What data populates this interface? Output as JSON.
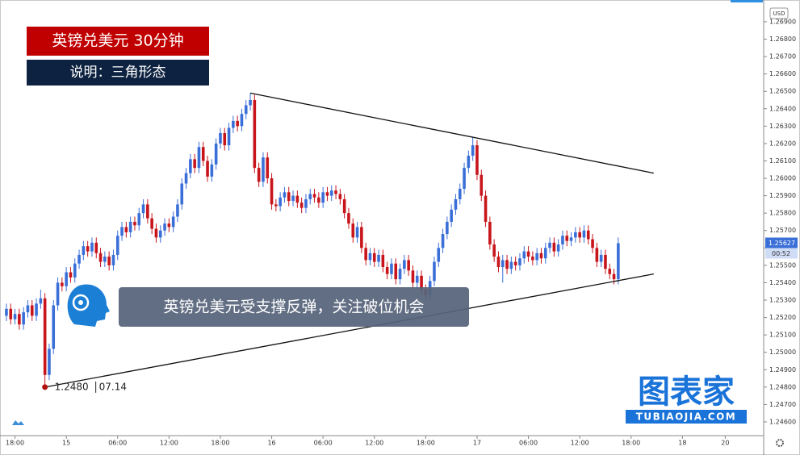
{
  "chart_data": {
    "type": "candlestick",
    "title": "英镑兑美元 30分钟",
    "subtitle": "说明：三角形态",
    "annotation": "英镑兑美元受支撑反弹，关注破位机会",
    "currency": "USD",
    "low_label": "1.2480",
    "low_time": "07.14",
    "last_price_label": "1.25627",
    "countdown": "00:52",
    "up_color": "#3a6fd8",
    "down_color": "#c8151b",
    "xlim": [
      -1.5,
      176.8
    ],
    "ylim": [
      1.24521,
      1.27025
    ],
    "xticks": [
      {
        "value": 2,
        "label": "18:00"
      },
      {
        "value": 14,
        "label": "15"
      },
      {
        "value": 26,
        "label": "06:00"
      },
      {
        "value": 38,
        "label": "12:00"
      },
      {
        "value": 50,
        "label": "18:00"
      },
      {
        "value": 62,
        "label": "16"
      },
      {
        "value": 74,
        "label": "06:00"
      },
      {
        "value": 86,
        "label": "12:00"
      },
      {
        "value": 98,
        "label": "18:00"
      },
      {
        "value": 110,
        "label": "17"
      },
      {
        "value": 122,
        "label": "06:00"
      },
      {
        "value": 134,
        "label": "12:00"
      },
      {
        "value": 146,
        "label": "18:00"
      },
      {
        "value": 158,
        "label": "18"
      },
      {
        "value": 168,
        "label": "20"
      }
    ],
    "yticks": [
      {
        "value": 1.246,
        "label": "1.24600"
      },
      {
        "value": 1.247,
        "label": "1.24700"
      },
      {
        "value": 1.248,
        "label": "1.24800"
      },
      {
        "value": 1.249,
        "label": "1.24900"
      },
      {
        "value": 1.25,
        "label": "1.25000"
      },
      {
        "value": 1.251,
        "label": "1.25100"
      },
      {
        "value": 1.252,
        "label": "1.25200"
      },
      {
        "value": 1.253,
        "label": "1.25300"
      },
      {
        "value": 1.254,
        "label": "1.25400"
      },
      {
        "value": 1.255,
        "label": "1.25500"
      },
      {
        "value": 1.256,
        "label": "1.25600"
      },
      {
        "value": 1.257,
        "label": "1.25700"
      },
      {
        "value": 1.258,
        "label": "1.25800"
      },
      {
        "value": 1.259,
        "label": "1.25900"
      },
      {
        "value": 1.26,
        "label": "1.26000"
      },
      {
        "value": 1.261,
        "label": "1.26100"
      },
      {
        "value": 1.262,
        "label": "1.26200"
      },
      {
        "value": 1.263,
        "label": "1.26300"
      },
      {
        "value": 1.264,
        "label": "1.26400"
      },
      {
        "value": 1.265,
        "label": "1.26500"
      },
      {
        "value": 1.266,
        "label": "1.26600"
      },
      {
        "value": 1.267,
        "label": "1.26700"
      },
      {
        "value": 1.268,
        "label": "1.26800"
      },
      {
        "value": 1.269,
        "label": "1.26900"
      }
    ],
    "trendlines": [
      {
        "x": [
          57,
          151.3
        ],
        "y": [
          1.2649,
          1.2603
        ]
      },
      {
        "x": [
          9,
          151.3
        ],
        "y": [
          1.248,
          1.2545
        ]
      }
    ],
    "open": [
      1.2521,
      1.2525,
      1.2519,
      1.2522,
      1.2516,
      1.2523,
      1.2527,
      1.2521,
      1.2528,
      1.2531,
      1.2487,
      1.2502,
      1.2527,
      1.254,
      1.2538,
      1.2546,
      1.2543,
      1.2551,
      1.2556,
      1.2561,
      1.2558,
      1.2563,
      1.2557,
      1.2552,
      1.2555,
      1.255,
      1.2556,
      1.2567,
      1.2572,
      1.2569,
      1.2575,
      1.2573,
      1.258,
      1.2585,
      1.2577,
      1.2571,
      1.2566,
      1.257,
      1.2574,
      1.2572,
      1.2578,
      1.2585,
      1.2597,
      1.2603,
      1.2611,
      1.2606,
      1.2618,
      1.261,
      1.2601,
      1.2608,
      1.262,
      1.2626,
      1.2619,
      1.2629,
      1.2633,
      1.263,
      1.2637,
      1.2642,
      1.2645,
      1.2606,
      1.2598,
      1.2612,
      1.26,
      1.2585,
      1.2584,
      1.2589,
      1.2592,
      1.2587,
      1.259,
      1.2586,
      1.2583,
      1.2588,
      1.2591,
      1.2589,
      1.2586,
      1.2592,
      1.259,
      1.2593,
      1.2591,
      1.2588,
      1.258,
      1.2574,
      1.2566,
      1.2572,
      1.256,
      1.2553,
      1.2557,
      1.2552,
      1.2556,
      1.2549,
      1.2545,
      1.2551,
      1.2542,
      1.2548,
      1.2553,
      1.2547,
      1.254,
      1.2544,
      1.2536,
      1.2533,
      1.2541,
      1.2552,
      1.256,
      1.2568,
      1.2575,
      1.2582,
      1.2588,
      1.2594,
      1.2606,
      1.2613,
      1.2619,
      1.2602,
      1.259,
      1.2575,
      1.2562,
      1.2555,
      1.2549,
      1.2553,
      1.2548,
      1.2552,
      1.255,
      1.2554,
      1.2558,
      1.2555,
      1.2553,
      1.2557,
      1.2554,
      1.256,
      1.2563,
      1.2558,
      1.2562,
      1.2567,
      1.2564,
      1.2566,
      1.2569,
      1.2566,
      1.257,
      1.2565,
      1.256,
      1.2552,
      1.2556,
      1.2548,
      1.2545,
      1.2542
    ],
    "high": [
      1.2528,
      1.2528,
      1.2525,
      1.2525,
      1.2526,
      1.253,
      1.253,
      1.2531,
      1.2536,
      1.2534,
      1.2505,
      1.253,
      1.2543,
      1.2543,
      1.2549,
      1.2549,
      1.2554,
      1.2559,
      1.2564,
      1.2564,
      1.2566,
      1.2566,
      1.256,
      1.2558,
      1.2558,
      1.2559,
      1.257,
      1.2575,
      1.2575,
      1.2578,
      1.2578,
      1.2583,
      1.2588,
      1.2588,
      1.258,
      1.2574,
      1.2573,
      1.2577,
      1.2577,
      1.2581,
      1.2588,
      1.26,
      1.2606,
      1.2614,
      1.2614,
      1.2621,
      1.2621,
      1.2613,
      1.2611,
      1.2623,
      1.2629,
      1.2629,
      1.2632,
      1.2636,
      1.2636,
      1.264,
      1.2645,
      1.2649,
      1.2648,
      1.2609,
      1.2615,
      1.2615,
      1.2603,
      1.2588,
      1.2592,
      1.2595,
      1.2595,
      1.2593,
      1.2593,
      1.2589,
      1.2591,
      1.2594,
      1.2594,
      1.2592,
      1.2595,
      1.2595,
      1.2596,
      1.2596,
      1.2594,
      1.2591,
      1.2583,
      1.2577,
      1.2575,
      1.2575,
      1.2563,
      1.256,
      1.256,
      1.2559,
      1.2559,
      1.2552,
      1.2554,
      1.2554,
      1.2551,
      1.2556,
      1.2556,
      1.255,
      1.2547,
      1.2547,
      1.2539,
      1.2544,
      1.2555,
      1.2563,
      1.2571,
      1.2578,
      1.2585,
      1.2591,
      1.2597,
      1.2609,
      1.2616,
      1.2624,
      1.2622,
      1.2605,
      1.2593,
      1.2578,
      1.2565,
      1.2558,
      1.2556,
      1.2556,
      1.2555,
      1.2555,
      1.2557,
      1.2561,
      1.2561,
      1.2558,
      1.256,
      1.256,
      1.2563,
      1.2566,
      1.2566,
      1.2565,
      1.257,
      1.257,
      1.2569,
      1.2572,
      1.2572,
      1.2573,
      1.2573,
      1.2568,
      1.2563,
      1.2559,
      1.2559,
      1.2551,
      1.2548,
      1.2566
    ],
    "low": [
      1.2518,
      1.2516,
      1.2516,
      1.2513,
      1.2513,
      1.252,
      1.2518,
      1.2518,
      1.2525,
      1.248,
      1.2484,
      1.2499,
      1.2524,
      1.2535,
      1.2535,
      1.254,
      1.254,
      1.2548,
      1.2553,
      1.2555,
      1.2555,
      1.2554,
      1.2549,
      1.2549,
      1.2547,
      1.2547,
      1.2553,
      1.2564,
      1.2566,
      1.2566,
      1.257,
      1.257,
      1.2577,
      1.2574,
      1.2568,
      1.2563,
      1.2563,
      1.2567,
      1.2569,
      1.2569,
      1.2575,
      1.2582,
      1.2594,
      1.26,
      1.2603,
      1.2603,
      1.2607,
      1.2598,
      1.2598,
      1.2605,
      1.2617,
      1.2616,
      1.2616,
      1.2626,
      1.2627,
      1.2627,
      1.2634,
      1.2639,
      1.2603,
      1.2595,
      1.2595,
      1.2597,
      1.2582,
      1.2581,
      1.2581,
      1.2586,
      1.2584,
      1.2584,
      1.2583,
      1.258,
      1.258,
      1.2585,
      1.2586,
      1.2583,
      1.2583,
      1.2587,
      1.2587,
      1.2588,
      1.2585,
      1.2577,
      1.2571,
      1.2563,
      1.2563,
      1.2557,
      1.255,
      1.255,
      1.2549,
      1.2549,
      1.2546,
      1.2542,
      1.2542,
      1.2539,
      1.2539,
      1.2545,
      1.2544,
      1.2537,
      1.2537,
      1.2533,
      1.253,
      1.253,
      1.2538,
      1.2549,
      1.2557,
      1.2565,
      1.2572,
      1.2579,
      1.2585,
      1.2591,
      1.2603,
      1.261,
      1.2599,
      1.2587,
      1.2572,
      1.2559,
      1.2552,
      1.2546,
      1.254,
      1.2545,
      1.2545,
      1.2547,
      1.2547,
      1.2551,
      1.2552,
      1.255,
      1.255,
      1.2551,
      1.2551,
      1.2557,
      1.2555,
      1.2555,
      1.2559,
      1.2561,
      1.2561,
      1.2563,
      1.2563,
      1.2563,
      1.2562,
      1.2557,
      1.2549,
      1.2549,
      1.2545,
      1.2542,
      1.2539,
      1.2539
    ],
    "close": [
      1.2525,
      1.2519,
      1.2522,
      1.2516,
      1.2523,
      1.2527,
      1.2521,
      1.2528,
      1.2531,
      1.2487,
      1.2502,
      1.2527,
      1.254,
      1.2538,
      1.2546,
      1.2543,
      1.2551,
      1.2556,
      1.2561,
      1.2558,
      1.2563,
      1.2557,
      1.2552,
      1.2555,
      1.255,
      1.2556,
      1.2567,
      1.2572,
      1.2569,
      1.2575,
      1.2573,
      1.258,
      1.2585,
      1.2577,
      1.2571,
      1.2566,
      1.257,
      1.2574,
      1.2572,
      1.2578,
      1.2585,
      1.2597,
      1.2603,
      1.2611,
      1.2606,
      1.2618,
      1.261,
      1.2601,
      1.2608,
      1.262,
      1.2626,
      1.2619,
      1.2629,
      1.2633,
      1.263,
      1.2637,
      1.2642,
      1.2645,
      1.2606,
      1.2598,
      1.2612,
      1.26,
      1.2585,
      1.2584,
      1.2589,
      1.2592,
      1.2587,
      1.259,
      1.2586,
      1.2583,
      1.2588,
      1.2591,
      1.2589,
      1.2586,
      1.2592,
      1.259,
      1.2593,
      1.2591,
      1.2588,
      1.258,
      1.2574,
      1.2566,
      1.2572,
      1.256,
      1.2553,
      1.2557,
      1.2552,
      1.2556,
      1.2549,
      1.2545,
      1.2551,
      1.2542,
      1.2548,
      1.2553,
      1.2547,
      1.254,
      1.2544,
      1.2536,
      1.2533,
      1.2541,
      1.2552,
      1.256,
      1.2568,
      1.2575,
      1.2582,
      1.2588,
      1.2594,
      1.2606,
      1.2613,
      1.2619,
      1.2602,
      1.259,
      1.2575,
      1.2562,
      1.2555,
      1.2549,
      1.2553,
      1.2548,
      1.2552,
      1.255,
      1.2554,
      1.2558,
      1.2555,
      1.2553,
      1.2557,
      1.2554,
      1.256,
      1.2563,
      1.2558,
      1.2562,
      1.2567,
      1.2564,
      1.2566,
      1.2569,
      1.2566,
      1.257,
      1.2565,
      1.256,
      1.2552,
      1.2556,
      1.2548,
      1.2545,
      1.2542,
      1.25627
    ]
  },
  "logo": {
    "name": "图表家",
    "url": "TUBIAOJIA.COM"
  }
}
